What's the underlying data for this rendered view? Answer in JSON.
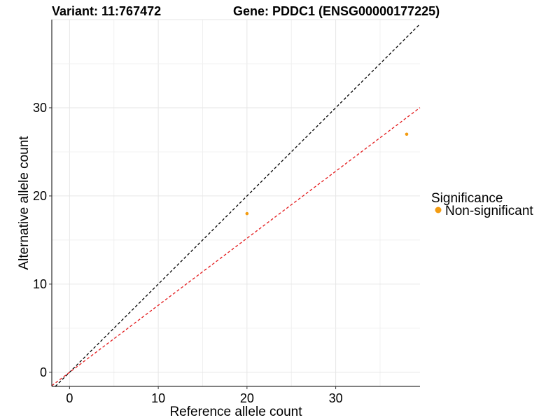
{
  "titles": {
    "variant": "Variant: 11:767472",
    "gene": "Gene: PDDC1 (ENSG00000177225)"
  },
  "legend": {
    "title": "Significance",
    "items": [
      {
        "label": "Non-significant",
        "color": "#F39C12"
      }
    ]
  },
  "chart_data": {
    "type": "scatter",
    "xlabel": "Reference allele count",
    "ylabel": "Alternative allele count",
    "xlim": [
      -2,
      39.5
    ],
    "ylim": [
      -1.6,
      40
    ],
    "xticks": [
      0,
      10,
      20,
      30
    ],
    "yticks": [
      0,
      10,
      20,
      30
    ],
    "grid": true,
    "legend_position": "right",
    "series": [
      {
        "name": "Non-significant",
        "color": "#F39C12",
        "points": [
          {
            "x": 20,
            "y": 18
          },
          {
            "x": 38,
            "y": 27
          }
        ]
      }
    ],
    "reference_lines": [
      {
        "slope": 1.0,
        "intercept": 0,
        "style": "dashed",
        "color": "#000000"
      },
      {
        "slope": 0.76,
        "intercept": 0,
        "style": "dashed",
        "color": "#E31A1C"
      }
    ]
  }
}
